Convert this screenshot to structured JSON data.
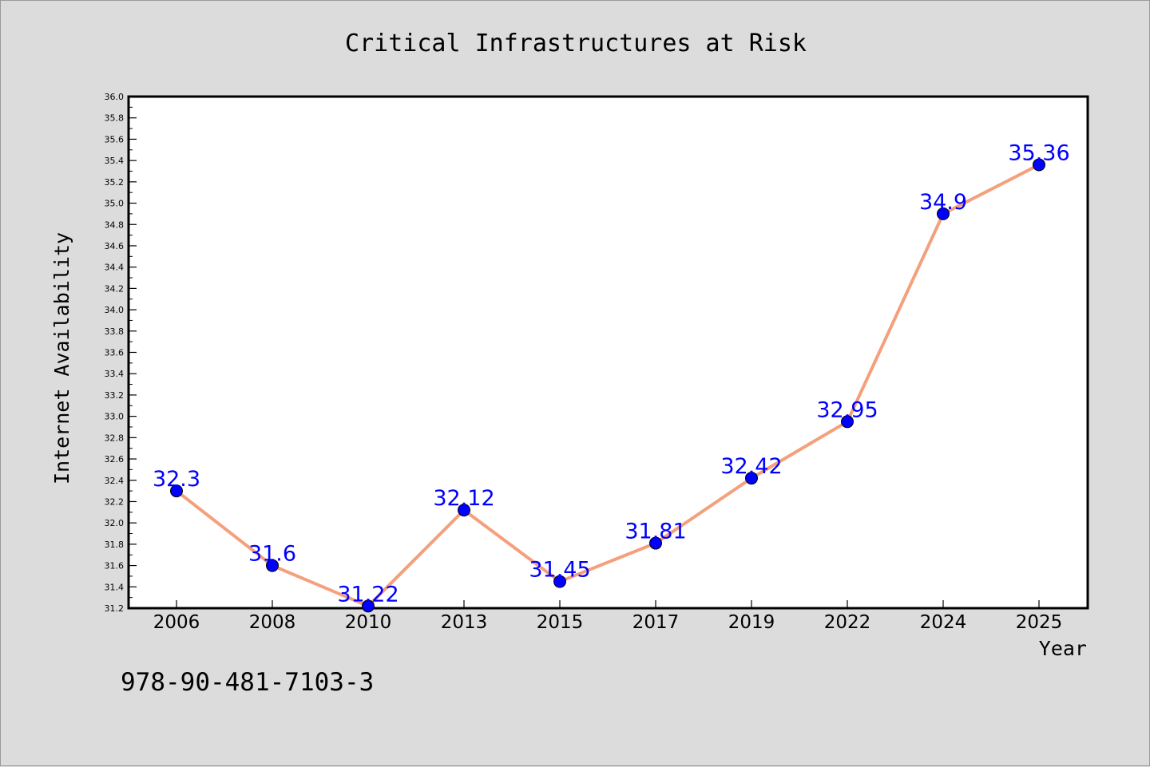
{
  "chart_data": {
    "type": "line",
    "title": "Critical Infrastructures at Risk",
    "xlabel": "Year",
    "ylabel": "Internet Availability",
    "categories": [
      "2006",
      "2008",
      "2010",
      "2013",
      "2015",
      "2017",
      "2019",
      "2022",
      "2024",
      "2025"
    ],
    "series": [
      {
        "values": [
          32.3,
          31.6,
          31.22,
          32.12,
          31.45,
          31.81,
          32.42,
          32.95,
          34.9,
          35.36
        ],
        "data_labels": [
          "32.3",
          "31.6",
          "31.22",
          "32.12",
          "31.45",
          "31.81",
          "32.42",
          "32.95",
          "34.9",
          "35.36"
        ],
        "line_color": "#f4a07c",
        "marker_color": "#0000ff"
      }
    ],
    "y_ticks": [
      "31.2",
      "31.4",
      "31.6",
      "31.8",
      "32.0",
      "32.2",
      "32.4",
      "32.6",
      "32.8",
      "33.0",
      "33.2",
      "33.4",
      "33.6",
      "33.8",
      "34.0",
      "34.2",
      "34.4",
      "34.6",
      "34.8",
      "35.0",
      "35.2",
      "35.4",
      "35.6",
      "35.8",
      "36.0"
    ],
    "ylim": [
      31.2,
      36.0
    ],
    "grid": false,
    "label_color": "#0000ff"
  },
  "footer": {
    "isbn": "978-90-481-7103-3"
  },
  "colors": {
    "background": "#dcdcdc",
    "plot_background": "#ffffff"
  }
}
